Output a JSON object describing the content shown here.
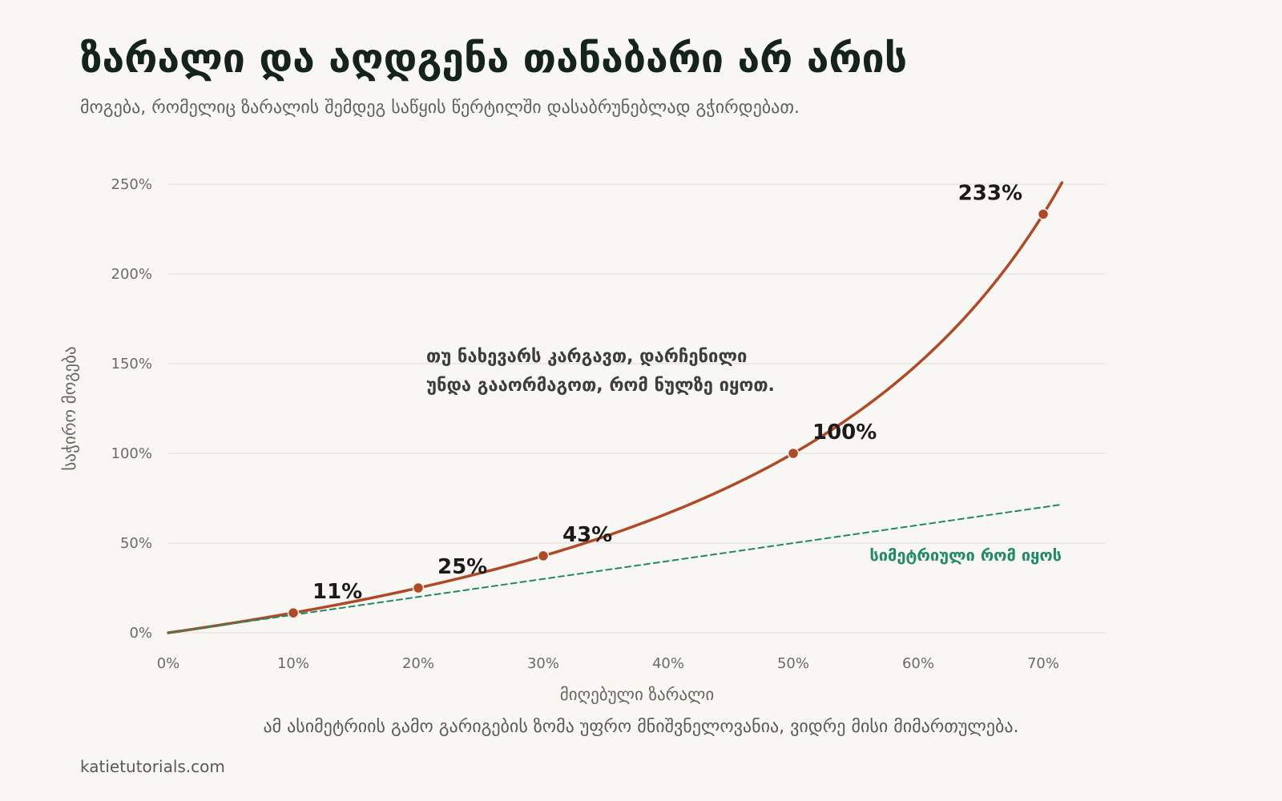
{
  "header": {
    "title": "ზარალი და აღდგენა თანაბარი არ არის",
    "subtitle": "მოგება, რომელიც ზარალის შემდეგ საწყის წერტილში დასაბრუნებლად გჭირდებათ."
  },
  "chart_data": {
    "type": "line",
    "xlabel": "მიღებული ზარალი",
    "ylabel": "საჭირო მოგება",
    "xlim": [
      0,
      0.75
    ],
    "ylim": [
      0,
      2.5
    ],
    "x_ticks": [
      0,
      0.1,
      0.2,
      0.3,
      0.4,
      0.5,
      0.6,
      0.7
    ],
    "x_tick_labels": [
      "0%",
      "10%",
      "20%",
      "30%",
      "40%",
      "50%",
      "60%",
      "70%"
    ],
    "y_ticks": [
      0,
      0.5,
      1.0,
      1.5,
      2.0,
      2.5
    ],
    "y_tick_labels": [
      "0%",
      "50%",
      "100%",
      "150%",
      "200%",
      "250%"
    ],
    "grid": "horizontal",
    "series": [
      {
        "role": "required-gain",
        "formula": "loss / (1 - loss)",
        "x_range": [
          0,
          0.715
        ],
        "color": "#b04a26",
        "style": "solid"
      },
      {
        "name": "სიმეტრიული რომ იყოს",
        "role": "symmetric-reference",
        "formula": "loss",
        "x_range": [
          0,
          0.715
        ],
        "color": "#1f8a64",
        "style": "dashed"
      }
    ],
    "points": [
      {
        "x": 0.1,
        "y": 0.111,
        "label": "11%"
      },
      {
        "x": 0.2,
        "y": 0.25,
        "label": "25%"
      },
      {
        "x": 0.3,
        "y": 0.429,
        "label": "43%"
      },
      {
        "x": 0.5,
        "y": 1.0,
        "label": "100%"
      },
      {
        "x": 0.7,
        "y": 2.333,
        "label": "233%"
      }
    ],
    "annotation": {
      "lines": [
        "თუ ნახევარს კარგავთ, დარჩენილი",
        "უნდა გააორმაგოთ, რომ ნულზე იყოთ."
      ]
    }
  },
  "footer": {
    "note": "ამ ასიმეტრიის გამო გარიგების ზომა უფრო მნიშვნელოვანია, ვიდრე მისი მიმართულება.",
    "source": "katietutorials.com"
  }
}
